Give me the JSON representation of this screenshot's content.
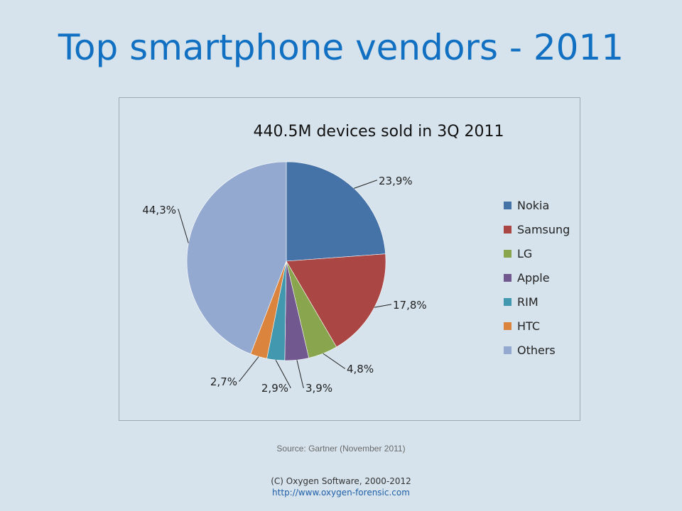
{
  "slide": {
    "title": "Top smartphone vendors - 2011",
    "source": "Source: Gartner (November 2011)",
    "footer_copyright": "(C) Oxygen Software, 2000-2012",
    "footer_url": "http://www.oxygen-forensic.com"
  },
  "chart_data": {
    "type": "pie",
    "title": "440.5M devices sold in 3Q 2011",
    "legend_position": "right",
    "slices": [
      {
        "name": "Nokia",
        "value": 23.9,
        "label": "23,9%",
        "color": "#4572a7"
      },
      {
        "name": "Samsung",
        "value": 17.8,
        "label": "17,8%",
        "color": "#aa4643"
      },
      {
        "name": "LG",
        "value": 4.8,
        "label": "4,8%",
        "color": "#89a54e"
      },
      {
        "name": "Apple",
        "value": 3.9,
        "label": "3,9%",
        "color": "#71588f"
      },
      {
        "name": "RIM",
        "value": 2.9,
        "label": "2,9%",
        "color": "#4198af"
      },
      {
        "name": "HTC",
        "value": 2.7,
        "label": "2,7%",
        "color": "#db843d"
      },
      {
        "name": "Others",
        "value": 44.3,
        "label": "44,3%",
        "color": "#93a9cf"
      }
    ]
  }
}
